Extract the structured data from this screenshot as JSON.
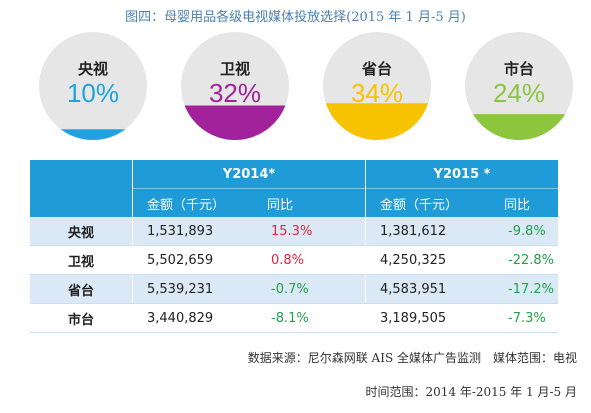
{
  "title": "图四：母婴用品各级电视媒体投放选择(2015 年 1 月-5 月)",
  "chart_data": {
    "type": "pie",
    "categories": [
      "央视",
      "卫视",
      "省台",
      "市台"
    ],
    "shares_pct": [
      10,
      32,
      34,
      24
    ],
    "share_labels": [
      "10%",
      "32%",
      "34%",
      "24%"
    ],
    "colors": [
      "#1fa3e0",
      "#a1229a",
      "#f7c300",
      "#8cc63f"
    ]
  },
  "table": {
    "year_headers": [
      "Y2014*",
      "Y2015 *"
    ],
    "sub_headers": [
      "金额（千元）",
      "同比",
      "金额（千元）",
      "同比"
    ],
    "rows": [
      {
        "name": "央视",
        "y2014_amount": "1,531,893",
        "y2014_yoy": "15.3%",
        "y2015_amount": "1,381,612",
        "y2015_yoy": "-9.8%"
      },
      {
        "name": "卫视",
        "y2014_amount": "5,502,659",
        "y2014_yoy": "0.8%",
        "y2015_amount": "4,250,325",
        "y2015_yoy": "-22.8%"
      },
      {
        "name": "省台",
        "y2014_amount": "5,539,231",
        "y2014_yoy": "-0.7%",
        "y2015_amount": "4,583,951",
        "y2015_yoy": "-17.2%"
      },
      {
        "name": "市台",
        "y2014_amount": "3,440,829",
        "y2014_yoy": "-8.1%",
        "y2015_amount": "3,189,505",
        "y2015_yoy": "-7.3%"
      }
    ]
  },
  "footer": {
    "source": "数据来源：尼尔森网联 AIS 全媒体广告监测　媒体范围：电视",
    "period": "时间范围：2014 年-2015 年 1 月-5 月"
  }
}
